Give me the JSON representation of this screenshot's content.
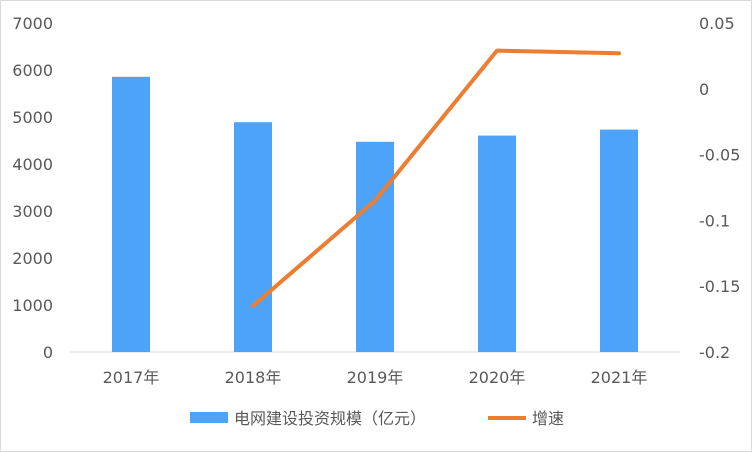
{
  "chart_data": {
    "type": "bar",
    "categories": [
      "2017年",
      "2018年",
      "2019年",
      "2020年",
      "2021年"
    ],
    "series": [
      {
        "name": "电网建设投资规模（亿元）",
        "type": "bar",
        "axis": "left",
        "color": "#4da3f7",
        "values": [
          5855,
          4889,
          4473,
          4605,
          4732
        ]
      },
      {
        "name": "增速",
        "type": "line",
        "axis": "right",
        "color": "#ed7d31",
        "values": [
          null,
          -0.165,
          -0.085,
          0.029,
          0.027
        ]
      }
    ],
    "y_left": {
      "ylim": [
        0,
        7000
      ],
      "ticks": [
        "0",
        "1000",
        "2000",
        "3000",
        "4000",
        "5000",
        "6000",
        "7000"
      ]
    },
    "y_right": {
      "ylim": [
        -0.2,
        0.05
      ],
      "ticks": [
        "-0.2",
        "-0.15",
        "-0.1",
        "-0.05",
        "0",
        "0.05"
      ]
    },
    "legend_position": "bottom",
    "grid": false
  }
}
